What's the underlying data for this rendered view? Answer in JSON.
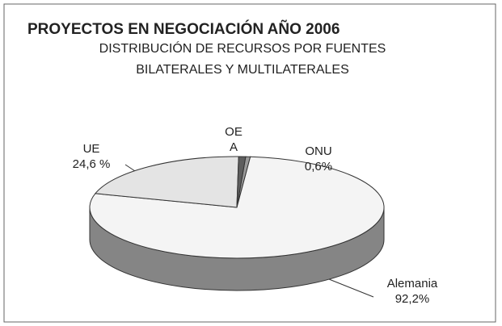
{
  "chart_data": {
    "type": "pie3d",
    "title": "PROYECTOS EN NEGOCIACIÓN AÑO 2006",
    "subtitle": [
      "DISTRIBUCIÓN DE RECURSOS POR FUENTES",
      "BILATERALES Y MULTILATERALES"
    ],
    "categories": [
      "ONU",
      "Alemania",
      "UE",
      "OE A"
    ],
    "values": [
      0.6,
      92.2,
      24.6,
      0.9
    ],
    "value_labels": [
      "0,6%",
      "92,2%",
      "24,6 %",
      null
    ],
    "colors": [
      "#9a9a9a",
      "#f4f4f4",
      "#e4e4e4",
      "#5e5e5e"
    ]
  }
}
